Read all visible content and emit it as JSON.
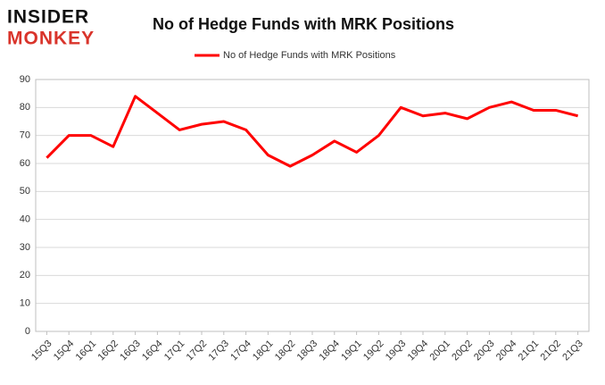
{
  "logo": {
    "line1": "INSIDER",
    "line2": "MONKEY"
  },
  "chart_data": {
    "type": "line",
    "title": "No of Hedge Funds with MRK Positions",
    "categories": [
      "15Q3",
      "15Q4",
      "16Q1",
      "16Q2",
      "16Q3",
      "16Q4",
      "17Q1",
      "17Q2",
      "17Q3",
      "17Q4",
      "18Q1",
      "18Q2",
      "18Q3",
      "18Q4",
      "19Q1",
      "19Q2",
      "19Q3",
      "19Q4",
      "20Q1",
      "20Q2",
      "20Q3",
      "20Q4",
      "21Q1",
      "21Q2",
      "21Q3"
    ],
    "series": [
      {
        "name": "No of Hedge Funds with MRK Positions",
        "color": "#ff0000",
        "values": [
          62,
          70,
          70,
          66,
          84,
          78,
          72,
          74,
          75,
          72,
          63,
          59,
          63,
          68,
          64,
          70,
          80,
          77,
          78,
          76,
          80,
          82,
          79,
          79,
          77
        ]
      }
    ],
    "ylim": [
      0,
      90
    ],
    "yticks": [
      0,
      10,
      20,
      30,
      40,
      50,
      60,
      70,
      80,
      90
    ],
    "grid": true,
    "legend": "top"
  }
}
